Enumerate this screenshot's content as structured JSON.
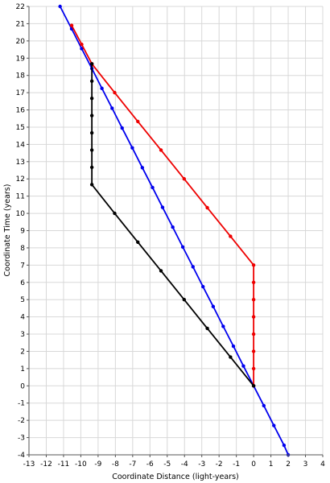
{
  "chart_data": {
    "type": "line",
    "xlabel": "Coordinate Distance (light-years)",
    "ylabel": "Coordinate Time (years)",
    "xlim": [
      -13,
      4
    ],
    "ylim": [
      -4,
      22
    ],
    "x_ticks": [
      -13,
      -12,
      -11,
      -10,
      -9,
      -8,
      -7,
      -6,
      -5,
      -4,
      -3,
      -2,
      -1,
      0,
      1,
      2,
      3,
      4
    ],
    "y_ticks": [
      -4,
      -3,
      -2,
      -1,
      0,
      1,
      2,
      3,
      4,
      5,
      6,
      7,
      8,
      9,
      10,
      11,
      12,
      13,
      14,
      15,
      16,
      17,
      18,
      19,
      20,
      21,
      22
    ],
    "grid": true,
    "legend": "none",
    "series": [
      {
        "color": "#0000ee",
        "points": [
          [
            2.0,
            -4.0
          ],
          [
            1.76,
            -3.45
          ],
          [
            1.17,
            -2.3
          ],
          [
            0.59,
            -1.15
          ],
          [
            0.0,
            0.0
          ],
          [
            -0.59,
            1.15
          ],
          [
            -1.17,
            2.3
          ],
          [
            -1.76,
            3.45
          ],
          [
            -2.34,
            4.6
          ],
          [
            -2.93,
            5.75
          ],
          [
            -3.51,
            6.9
          ],
          [
            -4.1,
            8.05
          ],
          [
            -4.68,
            9.2
          ],
          [
            -5.27,
            10.35
          ],
          [
            -5.85,
            11.5
          ],
          [
            -6.44,
            12.65
          ],
          [
            -7.02,
            13.8
          ],
          [
            -7.61,
            14.95
          ],
          [
            -8.19,
            16.1
          ],
          [
            -8.78,
            17.25
          ],
          [
            -9.36,
            18.4
          ],
          [
            -9.95,
            19.55
          ],
          [
            -10.53,
            20.7
          ],
          [
            -11.2,
            22.0
          ]
        ]
      },
      {
        "color": "#ee0000",
        "points": [
          [
            0.0,
            0.0
          ],
          [
            0.0,
            1.0
          ],
          [
            0.0,
            2.0
          ],
          [
            0.0,
            3.0
          ],
          [
            0.0,
            4.0
          ],
          [
            0.0,
            5.0
          ],
          [
            0.0,
            6.0
          ],
          [
            0.0,
            7.0
          ],
          [
            -1.34,
            8.67
          ],
          [
            -2.68,
            10.33
          ],
          [
            -4.02,
            12.0
          ],
          [
            -5.36,
            13.67
          ],
          [
            -6.7,
            15.33
          ],
          [
            -8.04,
            17.0
          ],
          [
            -9.36,
            18.67
          ],
          [
            -9.95,
            19.8
          ],
          [
            -10.53,
            20.9
          ]
        ]
      },
      {
        "color": "#000000",
        "points": [
          [
            0.0,
            0.0
          ],
          [
            -1.34,
            1.67
          ],
          [
            -2.68,
            3.33
          ],
          [
            -4.02,
            5.0
          ],
          [
            -5.36,
            6.67
          ],
          [
            -6.7,
            8.33
          ],
          [
            -8.04,
            10.0
          ],
          [
            -9.36,
            11.67
          ],
          [
            -9.36,
            12.67
          ],
          [
            -9.36,
            13.67
          ],
          [
            -9.36,
            14.67
          ],
          [
            -9.36,
            15.67
          ],
          [
            -9.36,
            16.67
          ],
          [
            -9.36,
            17.67
          ],
          [
            -9.36,
            18.67
          ]
        ]
      }
    ]
  }
}
